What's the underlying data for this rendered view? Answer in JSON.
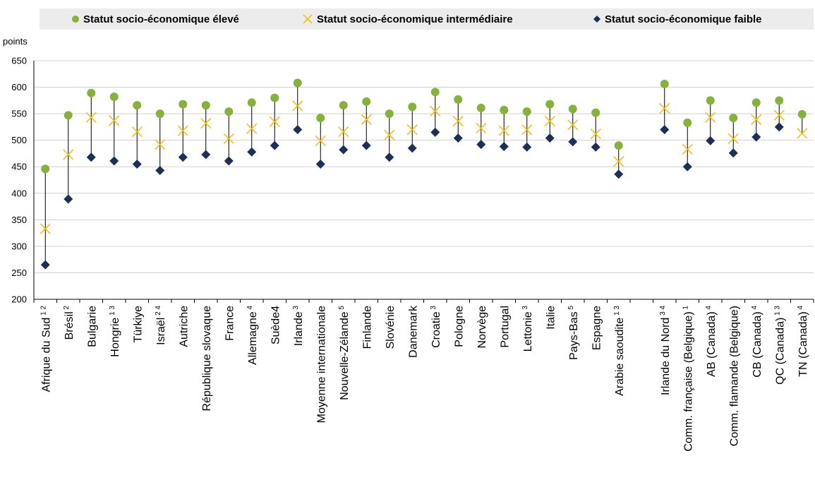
{
  "legend": {
    "high": "Statut socio-économique élevé",
    "mid": "Statut socio-économique intermédiaire",
    "low": "Statut socio-économique faible"
  },
  "unit": "points",
  "colors": {
    "high": "#86b23c",
    "mid": "#f2c01a",
    "low": "#1b2f57",
    "grid": "#d0d0d0",
    "axis": "#000000",
    "stem": "#000000",
    "legend_bg": "#ececec"
  },
  "chart_data": {
    "type": "scatter",
    "ylim": [
      200,
      650
    ],
    "yticks": [
      200,
      250,
      300,
      350,
      400,
      450,
      500,
      550,
      600,
      650
    ],
    "grid": true,
    "legend_position": "top",
    "categories": [
      {
        "name": "Afrique du Sud",
        "sup": "1 2"
      },
      {
        "name": "Brésil",
        "sup": "2"
      },
      {
        "name": "Bulgarie",
        "sup": ""
      },
      {
        "name": "Hongrie",
        "sup": "1 3"
      },
      {
        "name": "Türkiye",
        "sup": ""
      },
      {
        "name": "Israël",
        "sup": "2 4"
      },
      {
        "name": "Autriche",
        "sup": ""
      },
      {
        "name": "République slovaque",
        "sup": ""
      },
      {
        "name": "France",
        "sup": ""
      },
      {
        "name": "Allemagne",
        "sup": "4"
      },
      {
        "name": "Suède4",
        "sup": ""
      },
      {
        "name": "Irlande",
        "sup": "3"
      },
      {
        "name": "Moyenne internationale",
        "sup": ""
      },
      {
        "name": "Nouvelle-Zélande",
        "sup": "5"
      },
      {
        "name": "Finlande",
        "sup": ""
      },
      {
        "name": "Slovénie",
        "sup": ""
      },
      {
        "name": "Danemark",
        "sup": ""
      },
      {
        "name": "Croatie",
        "sup": "3"
      },
      {
        "name": "Pologne",
        "sup": ""
      },
      {
        "name": "Norvège",
        "sup": ""
      },
      {
        "name": "Portugal",
        "sup": ""
      },
      {
        "name": "Lettonie",
        "sup": "3"
      },
      {
        "name": "Italie",
        "sup": ""
      },
      {
        "name": "Pays-Bas",
        "sup": "5"
      },
      {
        "name": "Espagne",
        "sup": ""
      },
      {
        "name": "Arabie saoudite",
        "sup": "1 3"
      },
      {
        "name": "",
        "sup": ""
      },
      {
        "name": "Irlande du Nord",
        "sup": "3 4"
      },
      {
        "name": "Comm. française (Belgique)",
        "sup": "1"
      },
      {
        "name": "AB (Canada)",
        "sup": "4"
      },
      {
        "name": "Comm. flamande (Belgique)",
        "sup": ""
      },
      {
        "name": "CB (Canada)",
        "sup": "4"
      },
      {
        "name": "QC (Canada)",
        "sup": "1 3"
      },
      {
        "name": "TN (Canada)",
        "sup": "4"
      }
    ],
    "series": [
      {
        "name": "Statut socio-économique élevé",
        "marker": "circle",
        "values": [
          446,
          547,
          589,
          582,
          566,
          550,
          568,
          566,
          554,
          571,
          580,
          608,
          542,
          566,
          573,
          550,
          563,
          591,
          577,
          561,
          557,
          554,
          568,
          559,
          552,
          490,
          null,
          606,
          533,
          575,
          542,
          571,
          575,
          549
        ]
      },
      {
        "name": "Statut socio-économique intermédiaire",
        "marker": "x",
        "values": [
          333,
          473,
          543,
          537,
          516,
          492,
          518,
          532,
          503,
          522,
          535,
          565,
          499,
          516,
          539,
          510,
          520,
          555,
          536,
          523,
          518,
          520,
          536,
          529,
          512,
          460,
          null,
          560,
          483,
          543,
          503,
          539,
          547,
          513
        ]
      },
      {
        "name": "Statut socio-économique faible",
        "marker": "diamond",
        "values": [
          265,
          389,
          468,
          461,
          455,
          443,
          468,
          473,
          461,
          478,
          490,
          520,
          455,
          482,
          490,
          468,
          485,
          515,
          504,
          492,
          488,
          487,
          504,
          497,
          487,
          436,
          null,
          520,
          450,
          499,
          476,
          506,
          525,
          null
        ]
      }
    ]
  }
}
